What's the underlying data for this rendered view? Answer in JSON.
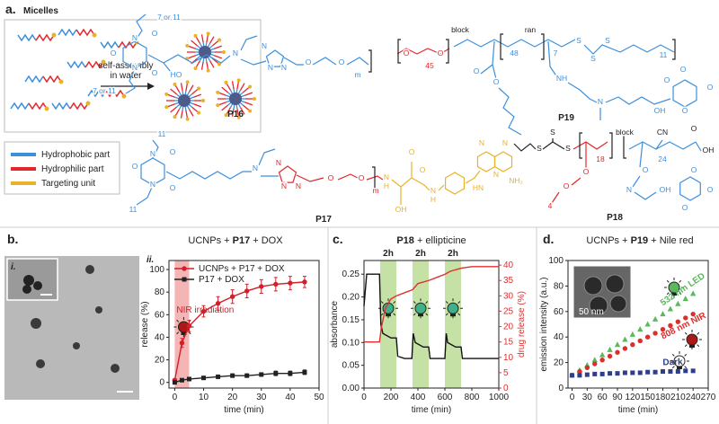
{
  "panel_a": {
    "label": "a.",
    "title": "Micelles",
    "process": [
      "self-assembly",
      "in water"
    ],
    "legend": [
      {
        "label": "Hydrophobic part",
        "color": "#3d8fdc"
      },
      {
        "label": "Hydrophilic part",
        "color": "#e5262a"
      },
      {
        "label": "Targeting unit",
        "color": "#e9b22a"
      }
    ],
    "structures": [
      {
        "name": "P16",
        "labels": [
          "7 or 11",
          "O",
          "N",
          "O",
          "N",
          "O",
          "7 or 11",
          "HO",
          "N",
          "N",
          "N",
          "N",
          "O",
          "O",
          "m"
        ]
      },
      {
        "name": "P19",
        "labels": [
          "O",
          "O",
          "45",
          "block",
          "48",
          "ran",
          "7",
          "S",
          "S",
          "S",
          "11",
          "O",
          "O",
          "NH",
          "N",
          "OH",
          "O",
          "O",
          "O",
          "O"
        ]
      },
      {
        "name": "P17",
        "labels": [
          "11",
          "N",
          "O",
          "O",
          "N",
          "O",
          "11",
          "N",
          "N",
          "N",
          "N",
          "O",
          "O",
          "m",
          "N",
          "H",
          "O",
          "OH",
          "N",
          "H",
          "O",
          "HN",
          "N",
          "N",
          "N",
          "NH₂"
        ]
      },
      {
        "name": "P18",
        "labels": [
          "S",
          "S",
          "S",
          "18",
          "block",
          "24",
          "CN",
          "OH",
          "O",
          "O",
          "O",
          "4",
          "N",
          "OH",
          "O",
          "O",
          "O",
          "O"
        ]
      }
    ]
  },
  "chart_data": [
    {
      "type": "line",
      "panel": "b.",
      "title": [
        "UCNPs + ",
        "P17",
        " + DOX"
      ],
      "subpanels": [
        "i.",
        "ii."
      ],
      "xlabel": "time (min)",
      "ylabel": "release (%)",
      "xlim": [
        -2,
        50
      ],
      "xticks": [
        0,
        10,
        20,
        30,
        40,
        50
      ],
      "ylim": [
        -5,
        108
      ],
      "yticks": [
        0,
        20,
        40,
        60,
        80,
        100
      ],
      "shaded": [
        0,
        5
      ],
      "shade_color": "#f3a3a3",
      "annotation": "NIR irradiation",
      "legend": "upper left",
      "series": [
        {
          "name": "UCNPs + P17 + DOX",
          "color": "#d0202a",
          "marker": "circle",
          "x": [
            0,
            2.5,
            5,
            10,
            15,
            20,
            25,
            30,
            35,
            40,
            45
          ],
          "values": [
            2,
            35,
            50,
            63,
            70,
            76,
            81,
            85,
            87,
            88,
            89
          ],
          "errors": [
            1,
            4,
            5,
            5,
            6,
            6,
            6,
            6,
            6,
            6,
            5
          ]
        },
        {
          "name": "P17 + DOX",
          "color": "#222222",
          "marker": "square",
          "x": [
            0,
            2.5,
            5,
            10,
            15,
            20,
            25,
            30,
            35,
            40,
            45
          ],
          "values": [
            0,
            2,
            3,
            4,
            5,
            6,
            6,
            7,
            8,
            8,
            9
          ],
          "errors": [
            0.5,
            1,
            1,
            1,
            1,
            1.5,
            1.5,
            1.5,
            2,
            2,
            2
          ]
        }
      ]
    },
    {
      "type": "line",
      "panel": "c.",
      "title": [
        "P18",
        " + ellipticine"
      ],
      "xlabel": "time (min)",
      "ylabel": "absorbance",
      "y2label": "drug release (%)",
      "xlim": [
        0,
        1000
      ],
      "xticks": [
        0,
        200,
        400,
        600,
        800,
        1000
      ],
      "ylim": [
        0,
        0.28
      ],
      "yticks": [
        {
          "value": 0,
          "label": "0.00"
        },
        {
          "value": 0.05,
          "label": "0.05"
        },
        {
          "value": 0.1,
          "label": "0.10"
        },
        {
          "value": 0.15,
          "label": "0.15"
        },
        {
          "value": 0.2,
          "label": "0.20"
        },
        {
          "value": 0.25,
          "label": "0.25"
        }
      ],
      "y2lim": [
        0,
        41.5
      ],
      "y2ticks": [
        0,
        5,
        10,
        15,
        20,
        25,
        30,
        35,
        40
      ],
      "y2color": "#e03030",
      "shaded": [
        [
          120,
          240
        ],
        [
          360,
          480
        ],
        [
          600,
          720
        ]
      ],
      "shade_color": "#b8da8e",
      "shade_label": "2h",
      "series": [
        {
          "color": "#111111",
          "x": [
            0,
            20,
            115,
            125,
            140,
            200,
            240,
            250,
            300,
            355,
            365,
            380,
            440,
            480,
            490,
            540,
            600,
            610,
            620,
            680,
            720,
            730,
            800,
            1000
          ],
          "values": [
            0.18,
            0.25,
            0.25,
            0.14,
            0.12,
            0.11,
            0.11,
            0.07,
            0.065,
            0.065,
            0.12,
            0.1,
            0.09,
            0.09,
            0.065,
            0.065,
            0.065,
            0.12,
            0.1,
            0.09,
            0.09,
            0.065,
            0.065,
            0.065
          ]
        },
        {
          "color": "#e03030",
          "axis": "y2",
          "x": [
            0,
            100,
            115,
            130,
            160,
            200,
            240,
            300,
            360,
            400,
            480,
            540,
            600,
            640,
            720,
            800,
            1000
          ],
          "values": [
            15,
            15,
            15,
            20,
            26,
            29,
            30,
            31,
            32,
            34,
            35,
            36,
            37,
            38,
            39,
            39.5,
            39.5
          ]
        }
      ]
    },
    {
      "type": "scatter",
      "panel": "d.",
      "title": [
        "UCNPs + ",
        "P19",
        " + Nile red"
      ],
      "xlabel": "time (min)",
      "ylabel": "emission intensity (a.u.)",
      "inset_scale_label": "50 nm",
      "xlim": [
        -8,
        270
      ],
      "xticks": [
        0,
        30,
        60,
        90,
        120,
        150,
        180,
        210,
        240,
        270
      ],
      "ylim": [
        0,
        100
      ],
      "yticks": [
        0,
        20,
        40,
        60,
        80,
        100
      ],
      "legend": "inline",
      "series": [
        {
          "name": "532 nm LED",
          "color": "#5cb85c",
          "marker": "triangle",
          "x": [
            0,
            15,
            30,
            45,
            60,
            75,
            90,
            105,
            120,
            135,
            150,
            165,
            180,
            195,
            210,
            225,
            240
          ],
          "values": [
            10,
            14,
            18,
            22,
            26,
            30,
            34,
            38,
            42,
            46,
            50,
            54,
            58,
            62,
            66,
            70,
            74
          ]
        },
        {
          "name": "808 nm NIR",
          "color": "#d9302c",
          "marker": "circle",
          "x": [
            0,
            15,
            30,
            45,
            60,
            75,
            90,
            105,
            120,
            135,
            150,
            165,
            180,
            195,
            210,
            225,
            240
          ],
          "values": [
            10,
            13,
            16,
            19,
            22,
            25,
            28,
            31,
            34,
            37,
            40,
            43,
            46,
            49,
            52,
            55,
            58
          ]
        },
        {
          "name": "Dark",
          "color": "#2c3e8c",
          "marker": "square",
          "x": [
            0,
            15,
            30,
            45,
            60,
            75,
            90,
            105,
            120,
            135,
            150,
            165,
            180,
            195,
            210,
            225,
            240
          ],
          "values": [
            10,
            10,
            10.5,
            11,
            11,
            11.5,
            11.5,
            12,
            12,
            12,
            12.5,
            12.5,
            13,
            13,
            13,
            13.5,
            13.5
          ]
        }
      ]
    }
  ]
}
